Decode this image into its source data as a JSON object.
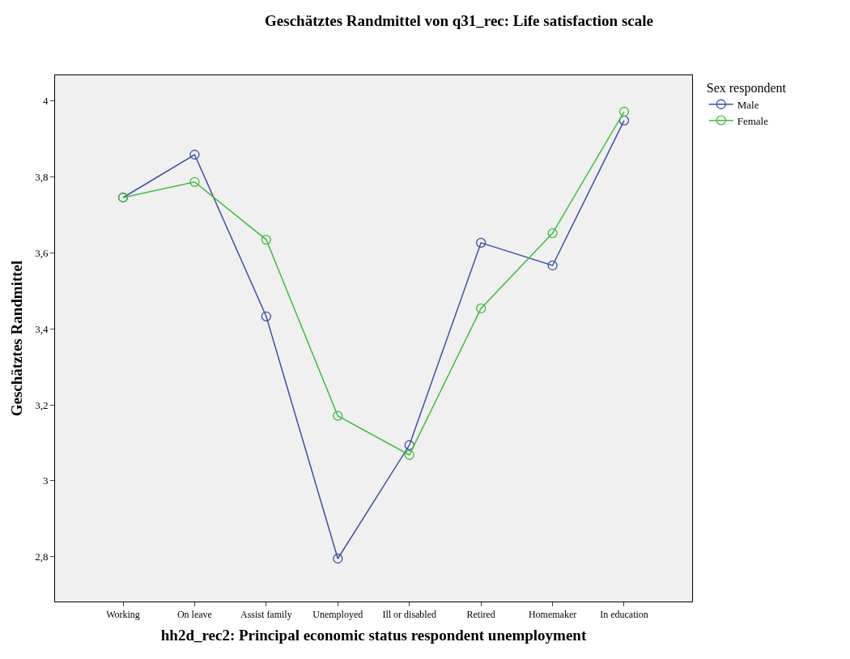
{
  "chart_data": {
    "type": "line",
    "title": "Geschätztes Randmittel von q31_rec: Life satisfaction scale",
    "xlabel": "hh2d_rec2: Principal economic status respondent unemployment",
    "ylabel": "Geschätztes Randmittel",
    "legend_title": "Sex respondent",
    "categories": [
      "Working",
      "On leave",
      "Assist family",
      "Unemployed",
      "Ill or disabled",
      "Retired",
      "Homemaker",
      "In education"
    ],
    "series": [
      {
        "name": "Male",
        "color": "#3e4fa3",
        "values": [
          3.746,
          3.859,
          3.433,
          2.795,
          3.094,
          3.627,
          3.567,
          3.949
        ]
      },
      {
        "name": "Female",
        "color": "#3cbe3c",
        "values": [
          3.746,
          3.787,
          3.635,
          3.171,
          3.068,
          3.454,
          3.652,
          3.972
        ]
      }
    ],
    "ylim": [
      2.682,
      4.068
    ],
    "yticks": [
      {
        "value": 2.8,
        "label": "2,8"
      },
      3,
      {
        "value": 3.2,
        "label": "3,2"
      },
      {
        "value": 3.4,
        "label": "3,4"
      },
      {
        "value": 3.6,
        "label": "3,6"
      },
      {
        "value": 3.8,
        "label": "3,8"
      },
      4
    ],
    "marker": "circle",
    "legend": "top right",
    "grid": false
  }
}
